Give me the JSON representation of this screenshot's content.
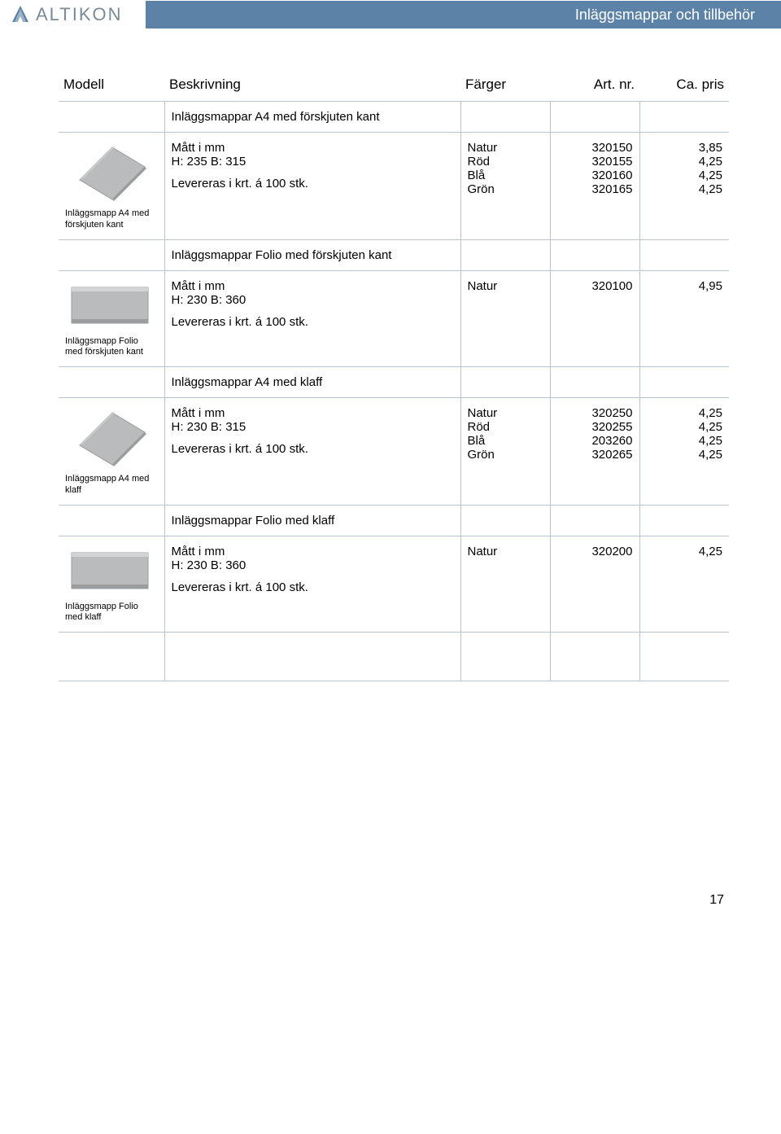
{
  "header": {
    "brand": "ALTIKON",
    "title": "Inläggsmappar och tillbehör",
    "bar_color": "#5c83a7",
    "brand_color": "#7a8a98"
  },
  "columns": {
    "model": "Modell",
    "desc": "Beskrivning",
    "colors": "Färger",
    "artnr": "Art. nr.",
    "price": "Ca. pris"
  },
  "sections": [
    {
      "title": "Inläggsmappar A4 med förskjuten kant",
      "caption": "Inläggsmapp A4 med förskjuten kant",
      "image_type": "folder_diag",
      "spec_lines": [
        "Mått i mm",
        "H: 235 B: 315",
        "",
        "Levereras i krt. á 100 stk."
      ],
      "rows": [
        {
          "color": "Natur",
          "art": "320150",
          "price": "3,85"
        },
        {
          "color": "Röd",
          "art": "320155",
          "price": "4,25"
        },
        {
          "color": "Blå",
          "art": "320160",
          "price": "4,25"
        },
        {
          "color": "Grön",
          "art": "320165",
          "price": "4,25"
        }
      ]
    },
    {
      "title": "Inläggsmappar Folio med förskjuten kant",
      "caption": "Inläggsmapp Folio med förskjuten kant",
      "image_type": "folder_flat",
      "spec_lines": [
        "Mått i mm",
        "H: 230 B: 360",
        "",
        "Levereras i krt. á 100 stk."
      ],
      "rows": [
        {
          "color": "Natur",
          "art": "320100",
          "price": "4,95"
        }
      ]
    },
    {
      "title": "Inläggsmappar A4 med klaff",
      "caption": "Inläggsmapp A4 med klaff",
      "image_type": "folder_diag",
      "spec_lines": [
        "Mått i mm",
        "H: 230 B: 315",
        "",
        "Levereras i krt. á 100 stk."
      ],
      "rows": [
        {
          "color": "Natur",
          "art": "320250",
          "price": "4,25"
        },
        {
          "color": "Röd",
          "art": "320255",
          "price": "4,25"
        },
        {
          "color": "Blå",
          "art": "203260",
          "price": "4,25"
        },
        {
          "color": "Grön",
          "art": "320265",
          "price": "4,25"
        }
      ]
    },
    {
      "title": "Inläggsmappar Folio med klaff",
      "caption": "Inläggsmapp Folio med klaff",
      "image_type": "folder_flat",
      "spec_lines": [
        "Mått i mm",
        "H: 230 B: 360",
        "",
        "Levereras i krt. á 100 stk."
      ],
      "rows": [
        {
          "color": "Natur",
          "art": "320200",
          "price": "4,25"
        }
      ]
    }
  ],
  "page_number": "17",
  "product_img": {
    "fill": "#b9bbbd",
    "fill_light": "#d2d3d5",
    "fill_dark": "#9a9c9e"
  }
}
